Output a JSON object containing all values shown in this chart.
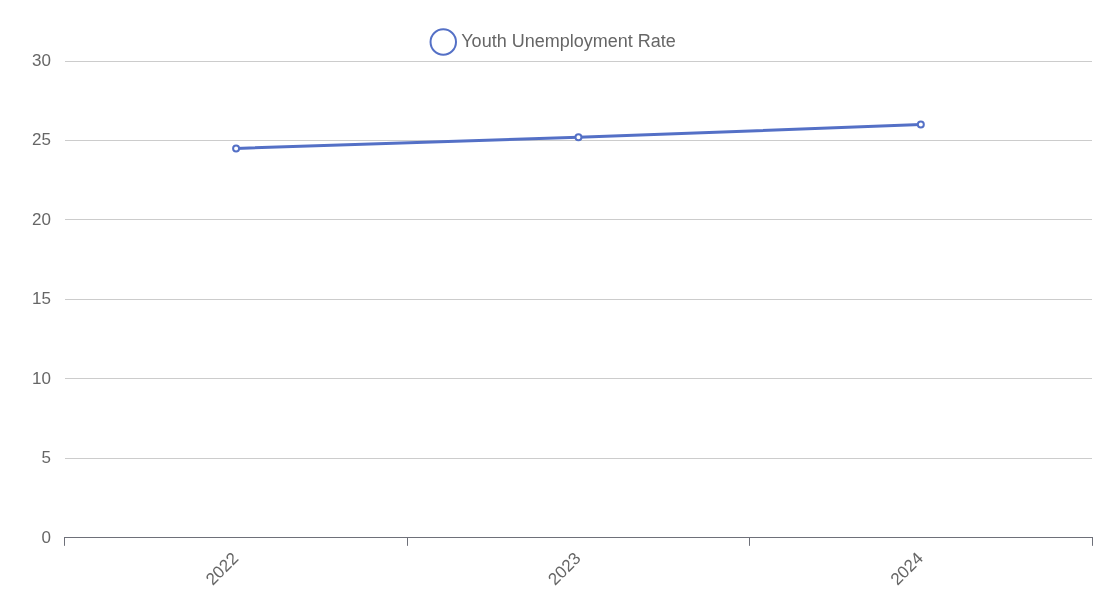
{
  "chart_data": {
    "type": "line",
    "categories": [
      "2022",
      "2023",
      "2024"
    ],
    "series": [
      {
        "name": "Youth Unemployment Rate",
        "color": "#5470c6",
        "values": [
          24.5,
          25.2,
          26.0
        ]
      }
    ],
    "ylim": [
      0,
      30
    ],
    "yticks": [
      0,
      5,
      10,
      15,
      20,
      25,
      30
    ],
    "grid": "y",
    "legend": "top",
    "marker": "circle",
    "line_style": "solid"
  }
}
